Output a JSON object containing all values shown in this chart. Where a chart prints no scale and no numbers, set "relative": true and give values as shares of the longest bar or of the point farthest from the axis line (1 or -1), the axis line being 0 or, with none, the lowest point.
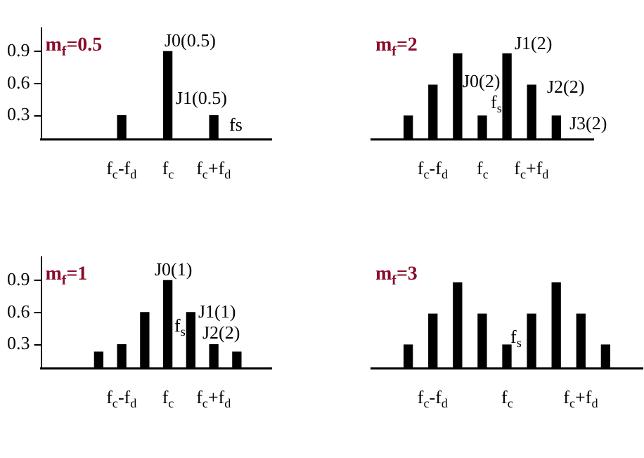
{
  "chart_data": [
    {
      "type": "bar",
      "title": "m$_{f}$=0.5",
      "categories": [
        null,
        null,
        null,
        "f$_{c}$-f$_{d}$",
        null,
        "f$_{c}$",
        null,
        "f$_{c}$+f$_{d}$",
        null,
        null
      ],
      "values": [
        null,
        null,
        null,
        0.3,
        null,
        0.9,
        null,
        0.3,
        null,
        null
      ],
      "color": "#000000",
      "ylim": [
        0.08,
        1.12
      ],
      "yticks": [
        0.3,
        0.6,
        0.9
      ],
      "annotations": [
        "J0(0.5)",
        "J1(0.5)",
        "fs"
      ]
    },
    {
      "type": "bar",
      "title": "m$_{f}$=2",
      "categories": [
        null,
        null,
        "f$_{c}$-f$_{d}$",
        null,
        "f$_{c}$",
        null,
        "f$_{c}$+f$_{d}$",
        null,
        null
      ],
      "values": [
        null,
        0.27,
        0.63,
        1,
        0.27,
        1,
        0.63,
        0.27,
        null
      ],
      "color": "#000000",
      "relative": true,
      "tick_labels": "x",
      "annotations": [
        "J0(2)",
        "J1(2)",
        "J2(2)",
        "J3(2)",
        "f$_{s}$"
      ]
    },
    {
      "type": "bar",
      "title": "m$_{f}$=1",
      "categories": [
        null,
        null,
        null,
        "f$_{c}$-f$_{d}$",
        null,
        "f$_{c}$",
        null,
        "f$_{c}$+f$_{d}$",
        null,
        null
      ],
      "values": [
        null,
        null,
        0.23,
        0.3,
        0.6,
        0.9,
        0.6,
        0.3,
        0.23,
        null
      ],
      "color": "#000000",
      "ylim": [
        0.08,
        1.12
      ],
      "yticks": [
        0.3,
        0.6,
        0.9
      ],
      "annotations": [
        "J0(1)",
        "J1(1)",
        "J2(2)",
        "f$_{s}$"
      ]
    },
    {
      "type": "bar",
      "title": "m$_{f}$=3",
      "categories": [
        null,
        null,
        "f$_{c}$-f$_{d}$",
        null,
        null,
        "f$_{c}$",
        null,
        null,
        "f$_{c}$+f$_{d}$",
        null,
        null
      ],
      "values": [
        null,
        0.27,
        0.63,
        1,
        0.63,
        0.27,
        0.63,
        1,
        0.63,
        0.27,
        null
      ],
      "color": "#000000",
      "relative": true,
      "tick_labels": "x",
      "annotations": [
        "f$_{s}$"
      ]
    }
  ]
}
